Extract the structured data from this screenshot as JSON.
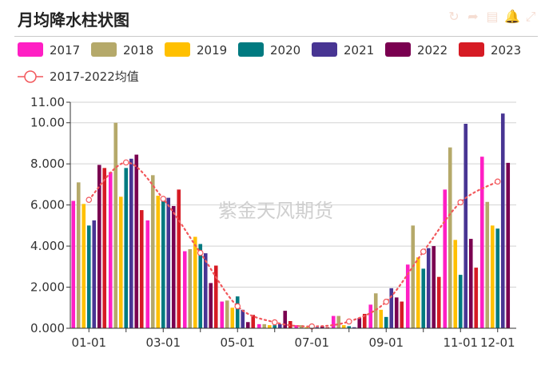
{
  "header": {
    "title": "月均降水柱状图",
    "tools": [
      {
        "name": "restore-icon",
        "glyph": "↻"
      },
      {
        "name": "share-icon",
        "glyph": "➦"
      },
      {
        "name": "data-view-icon",
        "glyph": "▤"
      },
      {
        "name": "bell-icon",
        "glyph": "🔔"
      },
      {
        "name": "fullscreen-icon",
        "glyph": "⤢"
      }
    ]
  },
  "watermark": "紫金天风期货",
  "colors": {
    "2017": "#ff1fc4",
    "2018": "#b5a96a",
    "2019": "#ffc000",
    "2020": "#007a80",
    "2021": "#483593",
    "2022": "#7a0050",
    "2023": "#d61b24",
    "avg": "#f2575b"
  },
  "chart_data": {
    "type": "bar",
    "title": "月均降水柱状图",
    "categories": [
      "01-01",
      "02-01",
      "03-01",
      "04-01",
      "05-01",
      "06-01",
      "07-01",
      "08-01",
      "09-01",
      "10-01",
      "11-01",
      "12-01"
    ],
    "x_tick_labels": [
      "01-01",
      "03-01",
      "05-01",
      "07-01",
      "09-01",
      "11-01",
      "12-01"
    ],
    "ylim": [
      0,
      11
    ],
    "y_ticks": [
      "0.000",
      "2.000",
      "4.000",
      "6.000",
      "8.000",
      "10.00",
      "11.00"
    ],
    "grid": true,
    "legend_position": "top",
    "series": [
      {
        "name": "2017",
        "values": [
          6.2,
          7.6,
          5.25,
          3.75,
          1.3,
          0.2,
          0.15,
          0.6,
          1.15,
          3.1,
          6.75,
          8.35
        ]
      },
      {
        "name": "2018",
        "values": [
          7.1,
          10.0,
          7.45,
          3.85,
          1.35,
          0.2,
          0.15,
          0.6,
          1.7,
          5.0,
          8.8,
          6.15
        ]
      },
      {
        "name": "2019",
        "values": [
          6.05,
          6.4,
          6.45,
          4.45,
          1.0,
          0.15,
          0.05,
          0.15,
          0.9,
          3.45,
          4.3,
          5.0
        ]
      },
      {
        "name": "2020",
        "values": [
          5.0,
          7.8,
          6.35,
          4.1,
          1.55,
          0.15,
          0.05,
          0.1,
          0.55,
          2.9,
          2.6,
          4.85
        ]
      },
      {
        "name": "2021",
        "values": [
          5.25,
          8.25,
          6.35,
          3.65,
          0.9,
          0.2,
          0.05,
          0.05,
          1.95,
          3.9,
          9.95,
          10.45
        ]
      },
      {
        "name": "2022",
        "values": [
          7.95,
          8.45,
          5.95,
          2.2,
          0.3,
          0.85,
          0.1,
          0.5,
          1.5,
          4.0,
          4.35,
          8.05
        ]
      },
      {
        "name": "2023",
        "values": [
          7.8,
          5.75,
          6.75,
          3.05,
          0.65,
          0.35,
          0.05,
          0.7,
          1.3,
          2.5,
          2.95,
          null
        ]
      }
    ],
    "average_series": {
      "name": "2017-2022均值",
      "type": "line",
      "values": [
        6.25,
        8.07,
        6.3,
        3.67,
        1.07,
        0.29,
        0.09,
        0.33,
        1.29,
        3.73,
        6.13,
        7.14
      ]
    }
  }
}
